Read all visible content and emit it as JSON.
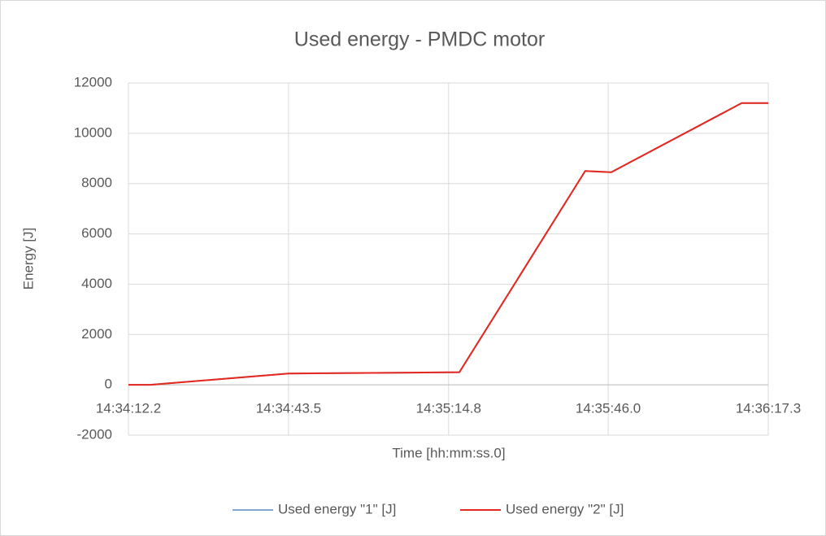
{
  "chart_data": {
    "type": "line",
    "title": "Used energy - PMDC motor",
    "x_label": "Time [hh:mm:ss.0]",
    "y_label": "Energy [J]",
    "x": [
      "14:34:12.2",
      "14:34:16.5",
      "14:34:43.5",
      "14:35:16.9",
      "14:35:41.5",
      "14:35:46.6",
      "14:36:12.1",
      "14:36:17.3"
    ],
    "series": [
      {
        "name": "Used energy \"1\" [J]",
        "color": "#7fa7cf",
        "values": [
          0,
          0,
          450,
          500,
          8500,
          8450,
          11200,
          11200
        ]
      },
      {
        "name": "Used energy \"2\" [J]",
        "color": "#e8271e",
        "values": [
          0,
          0,
          450,
          500,
          8500,
          8450,
          11200,
          11200
        ]
      }
    ],
    "xlim": [
      "14:34:12.2",
      "14:36:17.3"
    ],
    "xticks": [
      "14:34:12.2",
      "14:34:43.5",
      "14:35:14.8",
      "14:35:46.0",
      "14:36:17.3"
    ],
    "ylim": [
      -2000,
      12000
    ],
    "yticks": [
      -2000,
      0,
      2000,
      4000,
      6000,
      8000,
      10000,
      12000
    ],
    "grid": true,
    "legend": "bottom"
  }
}
